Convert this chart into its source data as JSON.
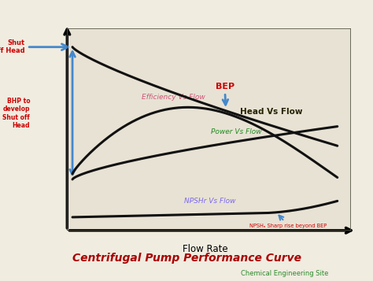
{
  "title": "Centrifugal Pump Performance Curve",
  "subtitle": "Chemical Engineering Site",
  "xlabel": "Flow Rate",
  "bg_color": "#f0ece0",
  "plot_bg": "#e8e2d4",
  "title_color": "#aa0000",
  "subtitle_color": "#2e8b2e",
  "curve_color": "#111111",
  "head_label": "Head Vs Flow",
  "efficiency_label": "Efficiency Vs Flow",
  "power_label": "Power Vs Flow",
  "npshr_label": "NPSHr Vs Flow",
  "shut_off_head_label": "Shut\nOff Head",
  "bhp_label": "BHP to\ndevelop\nShut off\nHead",
  "bep_label": "BEP",
  "npsh_label": "NPSHₐ Sharp rise beyond BEP",
  "efficiency_color": "#cc5577",
  "power_color": "#228b22",
  "npshr_color": "#7b68ee",
  "annotation_color": "#cc0000",
  "arrow_color": "#4488cc",
  "border_color": "#555544"
}
